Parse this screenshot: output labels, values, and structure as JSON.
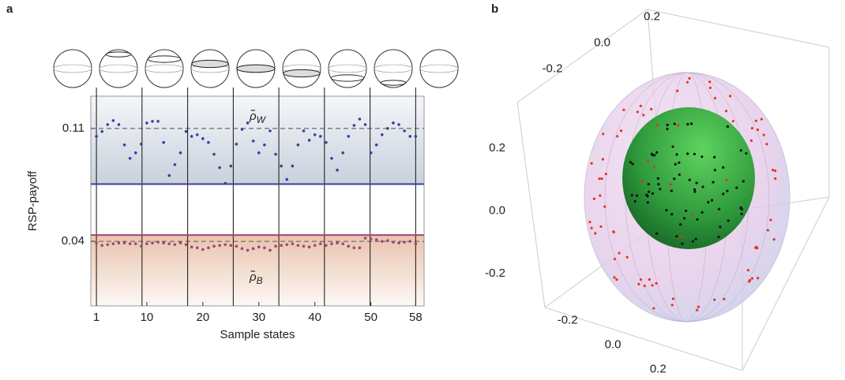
{
  "chart_data": [
    {
      "type": "scatter",
      "panel": "a",
      "ylabel": "RSP-payoff",
      "xlabel": "Sample states",
      "xlim": [
        0,
        59.5
      ],
      "ylim": [
        0,
        0.13
      ],
      "xticks": [
        1,
        10,
        20,
        30,
        40,
        50,
        58
      ],
      "yticks": [
        0.11,
        0.04
      ],
      "boundaries": [
        1,
        9.14,
        17.29,
        25.43,
        33.57,
        41.71,
        49.86,
        58
      ],
      "dashed_lines": [
        0.11,
        0.04
      ],
      "series": [
        {
          "color": "#3a3fa0",
          "bound": 0.0755,
          "annotation": {
            "symbol": "ρ̃",
            "sub": "W"
          },
          "values": [
            0.1051,
            0.1081,
            0.1124,
            0.1149,
            0.1124,
            0.0998,
            0.0915,
            0.0949,
            0.1003,
            0.1134,
            0.1144,
            0.1144,
            0.1013,
            0.0808,
            0.0876,
            0.0949,
            0.1081,
            0.1051,
            0.1061,
            0.1037,
            0.1013,
            0.094,
            0.0857,
            0.076,
            0.0867,
            0.1003,
            0.1095,
            0.1134,
            0.1022,
            0.0949,
            0.0998,
            0.1085,
            0.094,
            0.0867,
            0.0784,
            0.0867,
            0.0998,
            0.1085,
            0.1027,
            0.1061,
            0.1051,
            0.1013,
            0.0915,
            0.0842,
            0.0949,
            0.1051,
            0.1119,
            0.1158,
            0.1124,
            0.0949,
            0.0998,
            0.1061,
            0.11,
            0.1134,
            0.1124,
            0.1085,
            0.1051,
            0.1051
          ]
        },
        {
          "color": "#a0457a",
          "bound": 0.0439,
          "annotation": {
            "symbol": "ρ̃",
            "sub": "B"
          },
          "values": [
            0.039,
            0.0375,
            0.038,
            0.0385,
            0.039,
            0.039,
            0.0385,
            0.0385,
            0.037,
            0.0385,
            0.039,
            0.0395,
            0.039,
            0.0385,
            0.038,
            0.039,
            0.038,
            0.0365,
            0.036,
            0.035,
            0.036,
            0.037,
            0.0375,
            0.038,
            0.0375,
            0.037,
            0.0355,
            0.0345,
            0.0355,
            0.0365,
            0.036,
            0.0345,
            0.037,
            0.0375,
            0.038,
            0.0385,
            0.0375,
            0.037,
            0.0365,
            0.0375,
            0.0385,
            0.0375,
            0.0385,
            0.039,
            0.0385,
            0.037,
            0.036,
            0.036,
            0.042,
            0.0415,
            0.041,
            0.04,
            0.0405,
            0.0395,
            0.039,
            0.0395,
            0.04,
            0.0385
          ]
        }
      ]
    },
    {
      "type": "sphere3d",
      "panel": "b",
      "xlim": [
        -0.3,
        0.3
      ],
      "ylim": [
        -0.3,
        0.3
      ],
      "zlim": [
        -0.3,
        0.3
      ],
      "xticks": [
        0.2,
        {
          "value": 0,
          "label": "0.0"
        },
        -0.2
      ],
      "yticks": [
        -0.2,
        {
          "value": 0,
          "label": "0.0"
        },
        0.2
      ],
      "zticks": [
        0.2,
        {
          "value": 0,
          "label": "0.0"
        },
        -0.2
      ]
    }
  ]
}
